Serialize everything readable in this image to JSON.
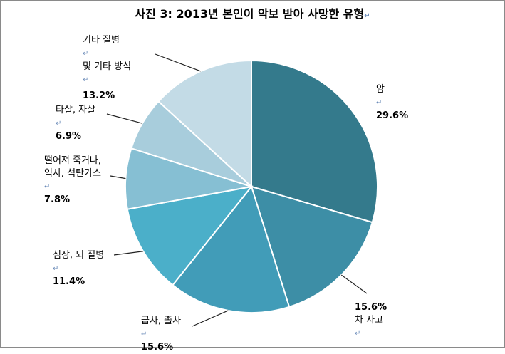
{
  "title": "사진 3: 2013년 본인이 악보 받아 사망한 유형",
  "title_mark": "↵",
  "chart_data": {
    "type": "pie",
    "title": "사진 3: 2013년 본인이 악보 받아 사망한 유형",
    "start_angle_deg": 0,
    "direction": "clockwise",
    "slices": [
      {
        "label_lines": [
          "암"
        ],
        "value": 29.6,
        "value_text": "29.6%",
        "color": "#347a8c"
      },
      {
        "label_lines": [
          "차 사고"
        ],
        "value": 15.6,
        "value_text": "15.6%",
        "color": "#3d8ea6"
      },
      {
        "label_lines": [
          "급사, 졸사"
        ],
        "value": 15.6,
        "value_text": "15.6%",
        "color": "#419cb8"
      },
      {
        "label_lines": [
          "심장, 뇌 질병"
        ],
        "value": 11.4,
        "value_text": "11.4%",
        "color": "#4bafc9"
      },
      {
        "label_lines": [
          "떨어져  죽거나,",
          "익사, 석탄가스"
        ],
        "value": 7.8,
        "value_text": "7.8%",
        "color": "#86bfd3"
      },
      {
        "label_lines": [
          "타살, 자살"
        ],
        "value": 6.9,
        "value_text": "6.9%",
        "color": "#a8cddc"
      },
      {
        "label_lines": [
          "기타 질병 ",
          "및 기타 방식"
        ],
        "value": 13.2,
        "value_text": "13.2%",
        "color": "#c3dbe6"
      }
    ]
  }
}
